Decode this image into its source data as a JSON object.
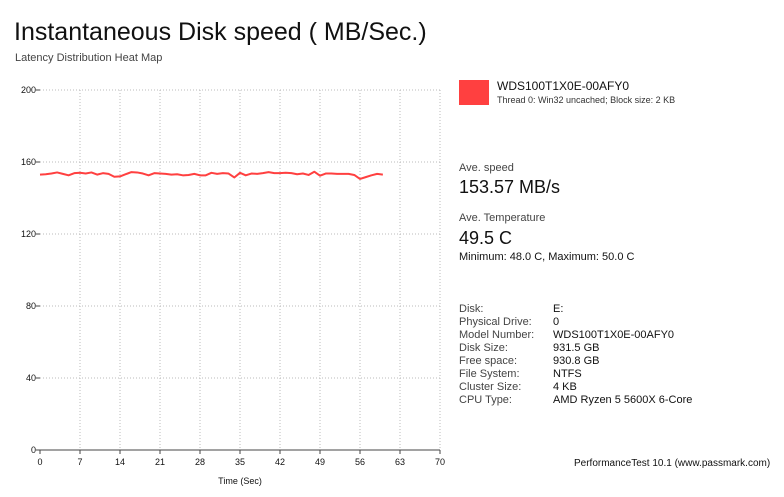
{
  "title": "Instantaneous Disk speed ( MB/Sec.)",
  "subtitle": "Latency Distribution Heat Map",
  "legend": {
    "name": "WDS100T1X0E-00AFY0",
    "description": "Thread 0: Win32 uncached; Block size: 2 KB",
    "color": "#ff4040"
  },
  "stats": {
    "ave_speed_label": "Ave. speed",
    "ave_speed_value": "153.57 MB/s",
    "ave_temp_label": "Ave. Temperature",
    "ave_temp_value": "49.5 C",
    "temp_minmax": "Minimum: 48.0 C, Maximum: 50.0 C"
  },
  "info": [
    {
      "label": "Disk:",
      "value": "E:"
    },
    {
      "label": "Physical Drive:",
      "value": "0"
    },
    {
      "label": "Model Number:",
      "value": "WDS100T1X0E-00AFY0"
    },
    {
      "label": "Disk Size:",
      "value": "931.5 GB"
    },
    {
      "label": "Free space:",
      "value": "930.8 GB"
    },
    {
      "label": "File System:",
      "value": "NTFS"
    },
    {
      "label": "Cluster Size:",
      "value": "4 KB"
    },
    {
      "label": "CPU Type:",
      "value": "AMD Ryzen 5 5600X 6-Core"
    }
  ],
  "footer": "PerformanceTest 10.1 (www.passmark.com)",
  "chart_data": {
    "type": "line",
    "xlabel": "Time (Sec)",
    "ylabel": "",
    "xlim": [
      0,
      70
    ],
    "ylim": [
      0,
      200
    ],
    "x_ticks": [
      "0",
      "7",
      "14",
      "21",
      "28",
      "35",
      "42",
      "49",
      "56",
      "63",
      "70"
    ],
    "y_ticks": [
      "0",
      "40",
      "80",
      "120",
      "160",
      "200"
    ],
    "grid": true,
    "series": [
      {
        "name": "WDS100T1X0E-00AFY0",
        "color": "#ff4040",
        "x": [
          0,
          1,
          2,
          3,
          4,
          5,
          6,
          7,
          8,
          9,
          10,
          11,
          12,
          13,
          14,
          15,
          16,
          17,
          18,
          19,
          20,
          21,
          22,
          23,
          24,
          25,
          26,
          27,
          28,
          29,
          30,
          31,
          32,
          33,
          34,
          35,
          36,
          37,
          38,
          39,
          40,
          41,
          42,
          43,
          44,
          45,
          46,
          47,
          48,
          49,
          50,
          51,
          52,
          53,
          54,
          55,
          56,
          57,
          58,
          59,
          60
        ],
        "y": [
          153.0,
          153.2,
          153.6,
          154.2,
          153.4,
          152.6,
          153.8,
          154.0,
          153.6,
          154.2,
          153.0,
          153.8,
          153.4,
          151.8,
          152.0,
          153.2,
          154.4,
          154.2,
          153.6,
          152.6,
          153.8,
          153.6,
          153.4,
          153.0,
          153.2,
          152.6,
          152.8,
          153.4,
          152.6,
          152.6,
          154.0,
          153.4,
          153.8,
          153.6,
          151.4,
          154.0,
          152.6,
          153.6,
          153.4,
          153.8,
          154.4,
          153.8,
          153.8,
          154.0,
          153.8,
          153.2,
          153.6,
          152.8,
          154.6,
          152.4,
          153.6,
          153.6,
          153.4,
          153.4,
          153.4,
          152.8,
          150.6,
          151.6,
          152.6,
          153.4,
          153.0
        ]
      }
    ]
  }
}
